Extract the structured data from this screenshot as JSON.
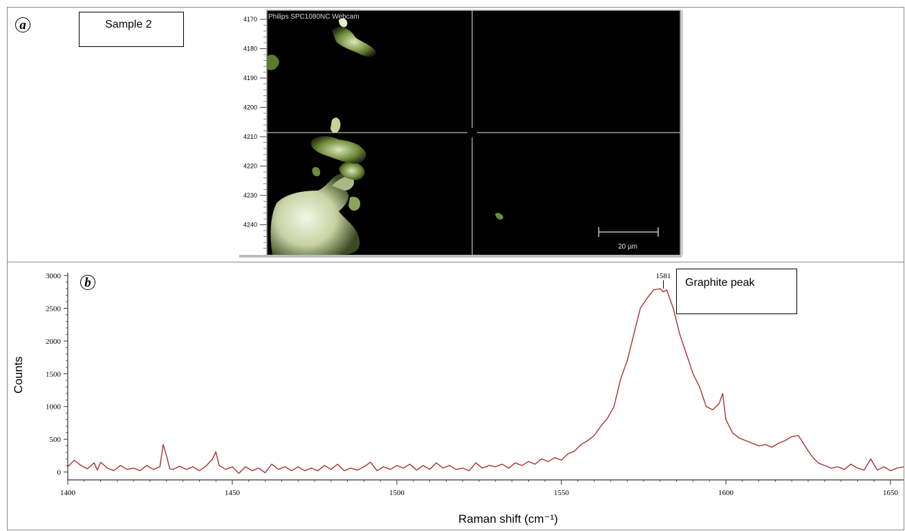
{
  "panel_a": {
    "letter": "a",
    "label": "Sample 2",
    "camera_title": "Philips SPC1080NC Webcam",
    "y_ticks": [
      4170,
      4180,
      4190,
      4200,
      4210,
      4220,
      4230,
      4240
    ],
    "scale_bar_label": "20 µm"
  },
  "panel_b": {
    "letter": "b",
    "annotation_box": "Graphite peak"
  },
  "colors": {
    "spectrum": "#a83232",
    "axis": "#333333",
    "image_bg": "#000000"
  },
  "chart_data": {
    "type": "line",
    "xlabel": "Raman shift (cm⁻¹)",
    "ylabel": "Counts",
    "xlim": [
      1400,
      1654
    ],
    "ylim": [
      -120,
      3000
    ],
    "x_ticks": [
      1400,
      1450,
      1500,
      1550,
      1600,
      1650
    ],
    "y_ticks": [
      0,
      500,
      1000,
      1500,
      2000,
      2500,
      3000
    ],
    "peak_label": "1581",
    "peak_x": 1581,
    "series": [
      {
        "x": [
          1400,
          1402,
          1404,
          1406,
          1408,
          1409,
          1410,
          1412,
          1414,
          1416,
          1418,
          1420,
          1422,
          1424,
          1426,
          1428,
          1429,
          1430,
          1431,
          1432,
          1434,
          1436,
          1438,
          1440,
          1442,
          1444,
          1445,
          1446,
          1448,
          1450,
          1452,
          1454,
          1456,
          1458,
          1460,
          1462,
          1464,
          1466,
          1468,
          1470,
          1472,
          1474,
          1476,
          1478,
          1480,
          1482,
          1484,
          1486,
          1488,
          1490,
          1492,
          1494,
          1496,
          1498,
          1500,
          1502,
          1504,
          1506,
          1508,
          1510,
          1512,
          1514,
          1516,
          1518,
          1520,
          1522,
          1524,
          1526,
          1528,
          1530,
          1532,
          1534,
          1536,
          1538,
          1540,
          1542,
          1544,
          1546,
          1548,
          1550,
          1552,
          1554,
          1556,
          1558,
          1560,
          1562,
          1564,
          1566,
          1568,
          1570,
          1572,
          1574,
          1576,
          1578,
          1580,
          1581,
          1582,
          1584,
          1586,
          1588,
          1590,
          1592,
          1594,
          1596,
          1598,
          1599,
          1600,
          1602,
          1604,
          1606,
          1608,
          1610,
          1612,
          1614,
          1616,
          1618,
          1620,
          1622,
          1624,
          1626,
          1628,
          1630,
          1632,
          1634,
          1636,
          1638,
          1640,
          1642,
          1644,
          1646,
          1648,
          1650,
          1652,
          1654
        ],
        "y": [
          80,
          180,
          100,
          50,
          140,
          30,
          150,
          60,
          20,
          100,
          40,
          60,
          20,
          100,
          40,
          80,
          420,
          250,
          50,
          40,
          90,
          40,
          80,
          20,
          90,
          200,
          310,
          100,
          40,
          80,
          -20,
          80,
          20,
          60,
          -10,
          120,
          40,
          80,
          20,
          80,
          20,
          60,
          20,
          100,
          40,
          120,
          20,
          60,
          30,
          80,
          150,
          20,
          80,
          40,
          100,
          60,
          120,
          30,
          100,
          40,
          140,
          60,
          100,
          40,
          60,
          20,
          140,
          60,
          100,
          80,
          120,
          60,
          140,
          100,
          160,
          120,
          200,
          160,
          220,
          180,
          280,
          320,
          420,
          480,
          560,
          700,
          820,
          1000,
          1420,
          1700,
          2100,
          2500,
          2650,
          2780,
          2800,
          2750,
          2780,
          2500,
          2100,
          1800,
          1500,
          1300,
          1000,
          950,
          1050,
          1200,
          800,
          600,
          520,
          480,
          440,
          400,
          420,
          380,
          440,
          480,
          540,
          560,
          400,
          250,
          140,
          100,
          60,
          80,
          40,
          120,
          60,
          30,
          200,
          30,
          80,
          20,
          60,
          80
        ]
      }
    ]
  }
}
